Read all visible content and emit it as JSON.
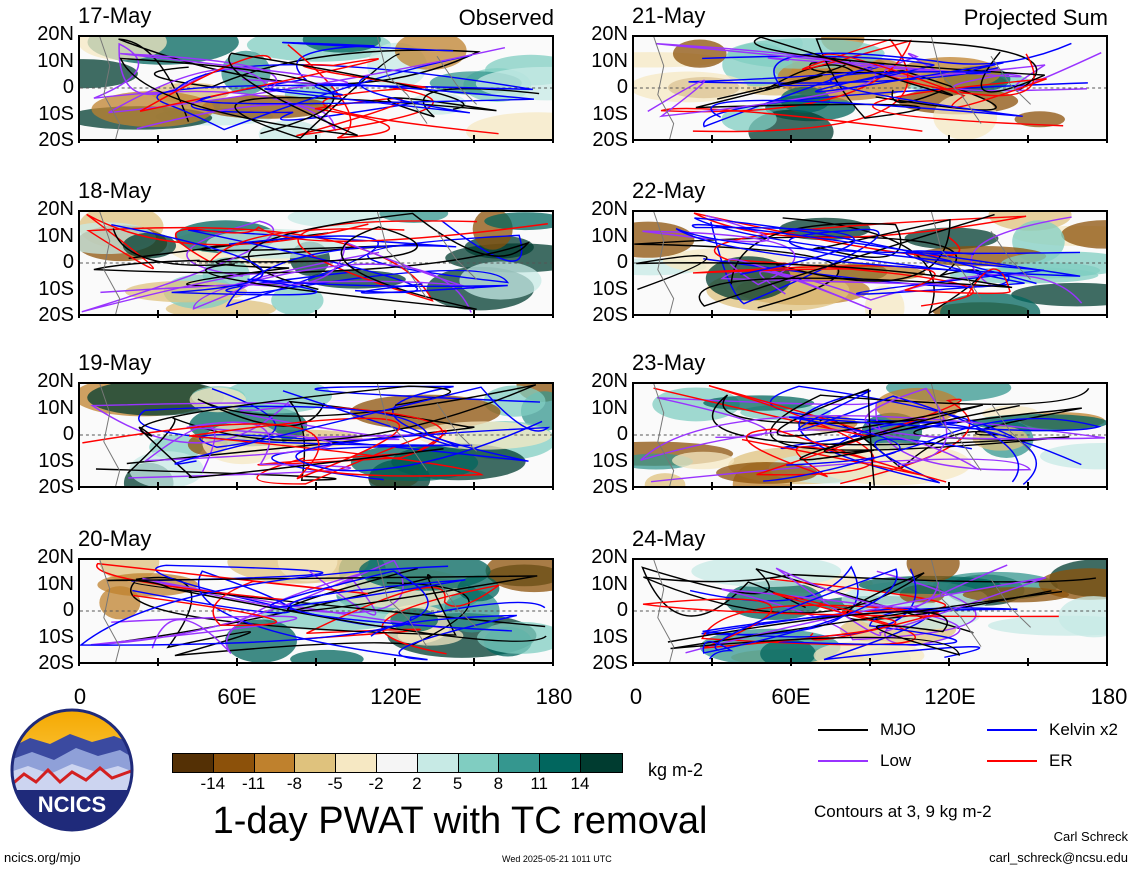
{
  "panels_left": [
    {
      "date": "17-May",
      "corner": "Observed"
    },
    {
      "date": "18-May",
      "corner": ""
    },
    {
      "date": "19-May",
      "corner": ""
    },
    {
      "date": "20-May",
      "corner": ""
    }
  ],
  "panels_right": [
    {
      "date": "21-May",
      "corner": "Projected Sum"
    },
    {
      "date": "22-May",
      "corner": ""
    },
    {
      "date": "23-May",
      "corner": ""
    },
    {
      "date": "24-May",
      "corner": ""
    }
  ],
  "lat_labels": [
    "20N",
    "10N",
    "0",
    "10S",
    "20S"
  ],
  "lon_labels": [
    "0",
    "60E",
    "120E",
    "180"
  ],
  "colorbar": {
    "colors": [
      "#543005",
      "#8c510a",
      "#bf812d",
      "#dfc27d",
      "#f6e8c3",
      "#f5f5f5",
      "#c7eae5",
      "#80cdc1",
      "#35978f",
      "#01665e",
      "#003c30"
    ],
    "ticks": [
      "-14",
      "-11",
      "-8",
      "-5",
      "-2",
      "2",
      "5",
      "8",
      "11",
      "14"
    ],
    "units": "kg m-2"
  },
  "legend": {
    "mjo": {
      "label": "MJO",
      "color": "#000000"
    },
    "kelvin": {
      "label": "Kelvin x2",
      "color": "#0000ff"
    },
    "low": {
      "label": "Low",
      "color": "#9933ff"
    },
    "er": {
      "label": "ER",
      "color": "#ff0000"
    }
  },
  "title": "1-day PWAT with TC removal",
  "contour_note": "Contours at 3, 9 kg m-2",
  "logo_text": "NCICS",
  "footer": {
    "site": "ncics.org/mjo",
    "timestamp": "Wed 2025-05-21 1011 UTC",
    "author": "Carl Schreck",
    "email": "carl_schreck@ncsu.edu"
  }
}
